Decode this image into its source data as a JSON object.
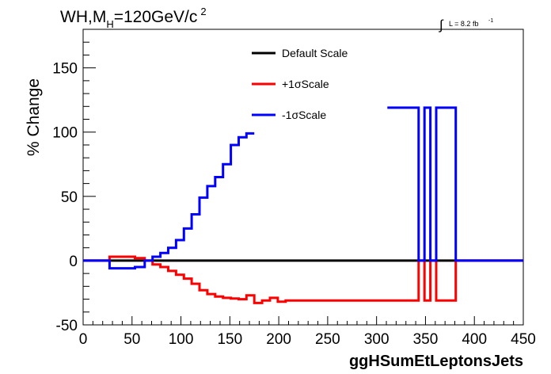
{
  "header": {
    "title_main": "WH,M",
    "title_sub": "H",
    "title_rest": "=120GeV/c",
    "title_sup": "2"
  },
  "lumi": {
    "integral": "∫",
    "text": "L = 8.2 fb",
    "sup": "-1"
  },
  "chart_data": {
    "type": "line",
    "xlabel": "ggHSumEtLeptonsJets",
    "ylabel": "% Change",
    "xlim": [
      0,
      450
    ],
    "ylim": [
      -50,
      180
    ],
    "xticks": [
      0,
      50,
      100,
      150,
      200,
      250,
      300,
      350,
      400,
      450
    ],
    "yticks": [
      -50,
      0,
      50,
      100,
      150
    ],
    "legend_position": "top-center",
    "bin_edges": [
      0,
      27,
      53,
      63,
      71,
      79,
      87,
      95,
      103,
      111,
      119,
      127,
      135,
      143,
      151,
      159,
      167,
      175,
      183,
      191,
      199,
      207,
      215,
      223,
      231,
      239,
      247,
      255,
      263,
      271,
      279,
      287,
      295,
      303,
      311,
      343,
      349,
      355,
      361,
      381,
      387,
      450
    ],
    "series": [
      {
        "name": "Default Scale",
        "color": "#000000",
        "values": [
          0,
          0,
          0,
          0,
          0,
          0,
          0,
          0,
          0,
          0,
          0,
          0,
          0,
          0,
          0,
          0,
          0,
          0,
          0,
          0,
          0,
          0,
          0,
          0,
          0,
          0,
          0,
          0,
          0,
          0,
          0,
          0,
          0,
          0,
          0,
          0,
          0,
          0,
          0,
          0,
          0
        ]
      },
      {
        "name": "+1σScale",
        "color": "#ff0000",
        "values": [
          0,
          3,
          2,
          0,
          -3,
          -5,
          -8,
          -11,
          -14,
          -18,
          -23,
          -26,
          -28,
          -29,
          -29.5,
          -30,
          -27,
          -33,
          -31,
          -29,
          -32,
          -31,
          -31,
          -31,
          -31,
          -31,
          -31,
          -31,
          -31,
          -31,
          -31,
          -31,
          -31,
          -31,
          -31,
          0,
          -31,
          0,
          -31,
          0,
          0
        ]
      },
      {
        "name": "-1σScale",
        "color": "#0000ff",
        "values": [
          0,
          -6,
          -5,
          0,
          3,
          6,
          10,
          16,
          25,
          36,
          49,
          58,
          65,
          75,
          90,
          96,
          99,
          null,
          null,
          null,
          null,
          null,
          null,
          null,
          null,
          null,
          null,
          null,
          null,
          null,
          null,
          null,
          null,
          null,
          119,
          0,
          119,
          0,
          119,
          0,
          0
        ]
      }
    ]
  }
}
